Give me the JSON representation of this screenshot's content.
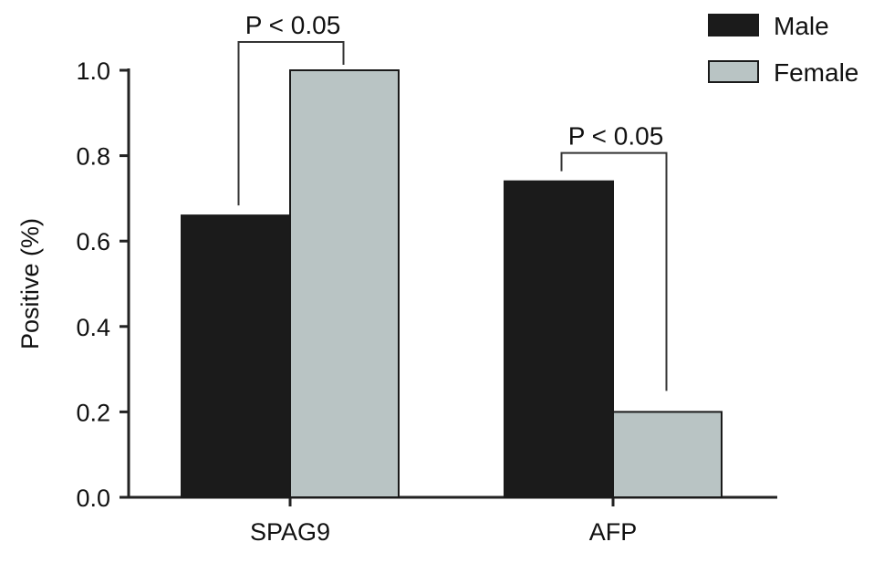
{
  "chart_data": {
    "type": "bar",
    "categories": [
      "SPAG9",
      "AFP"
    ],
    "series": [
      {
        "name": "Male",
        "values": [
          0.66,
          0.74
        ],
        "color": "#1b1b1b"
      },
      {
        "name": "Female",
        "values": [
          1.0,
          0.2
        ],
        "color": "#b9c4c4"
      }
    ],
    "ylabel": "Positive (%)",
    "xlabel": "",
    "ylim": [
      0,
      1.0
    ],
    "yticks": [
      "0.0",
      "0.2",
      "0.4",
      "0.6",
      "0.8",
      "1.0"
    ],
    "grid": false,
    "legend_position": "top-right",
    "annotations": [
      {
        "text": "P < 0.05",
        "category": "SPAG9"
      },
      {
        "text": "P < 0.05",
        "category": "AFP"
      }
    ]
  }
}
